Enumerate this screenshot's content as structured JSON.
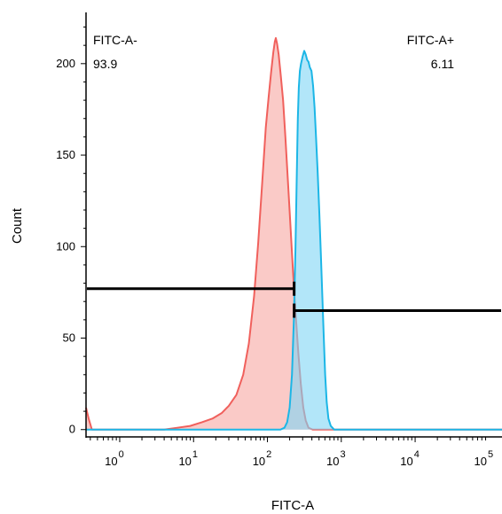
{
  "chart_data": {
    "type": "area",
    "title": "",
    "xlabel": "FITC-A",
    "ylabel": "Count",
    "x_scale": "log",
    "xlim": [
      0.35,
      150000
    ],
    "ylim": [
      -4,
      228
    ],
    "yticks": [
      0,
      50,
      100,
      150,
      200
    ],
    "xticks": [
      {
        "base": "10",
        "exp": "0",
        "value": 1
      },
      {
        "base": "10",
        "exp": "1",
        "value": 10
      },
      {
        "base": "10",
        "exp": "2",
        "value": 100
      },
      {
        "base": "10",
        "exp": "3",
        "value": 1000
      },
      {
        "base": "10",
        "exp": "4",
        "value": 10000
      },
      {
        "base": "10",
        "exp": "5",
        "value": 100000
      }
    ],
    "grid": false,
    "series": [
      {
        "color": "#f0605c",
        "fill": "#f6a6a2",
        "points": [
          [
            0.35,
            12
          ],
          [
            0.38,
            6
          ],
          [
            0.42,
            0
          ],
          [
            4,
            0
          ],
          [
            6,
            1
          ],
          [
            9,
            2
          ],
          [
            13,
            4
          ],
          [
            18,
            6
          ],
          [
            24,
            9
          ],
          [
            30,
            13
          ],
          [
            38,
            19
          ],
          [
            47,
            30
          ],
          [
            56,
            47
          ],
          [
            66,
            73
          ],
          [
            75,
            102
          ],
          [
            85,
            135
          ],
          [
            95,
            165
          ],
          [
            104,
            182
          ],
          [
            112,
            195
          ],
          [
            120,
            206
          ],
          [
            126,
            212
          ],
          [
            130,
            214
          ],
          [
            135,
            211
          ],
          [
            142,
            205
          ],
          [
            152,
            193
          ],
          [
            163,
            180
          ],
          [
            175,
            160
          ],
          [
            190,
            135
          ],
          [
            206,
            110
          ],
          [
            223,
            85
          ],
          [
            242,
            62
          ],
          [
            262,
            42
          ],
          [
            283,
            25
          ],
          [
            306,
            12
          ],
          [
            330,
            5
          ],
          [
            360,
            1
          ],
          [
            410,
            0
          ],
          [
            150000,
            0
          ]
        ]
      },
      {
        "color": "#1cb6e6",
        "fill": "#7ed6f5",
        "points": [
          [
            0.35,
            0
          ],
          [
            150,
            0
          ],
          [
            170,
            1
          ],
          [
            185,
            4
          ],
          [
            200,
            12
          ],
          [
            215,
            30
          ],
          [
            228,
            60
          ],
          [
            240,
            100
          ],
          [
            250,
            140
          ],
          [
            258,
            170
          ],
          [
            266,
            187
          ],
          [
            275,
            196
          ],
          [
            285,
            200
          ],
          [
            300,
            204
          ],
          [
            315,
            207
          ],
          [
            330,
            205
          ],
          [
            345,
            202
          ],
          [
            360,
            201
          ],
          [
            375,
            198
          ],
          [
            395,
            196
          ],
          [
            415,
            188
          ],
          [
            435,
            176
          ],
          [
            455,
            160
          ],
          [
            480,
            140
          ],
          [
            505,
            118
          ],
          [
            530,
            95
          ],
          [
            555,
            72
          ],
          [
            580,
            50
          ],
          [
            605,
            30
          ],
          [
            635,
            15
          ],
          [
            670,
            6
          ],
          [
            720,
            2
          ],
          [
            800,
            0
          ],
          [
            150000,
            0
          ]
        ]
      }
    ],
    "gates": [
      {
        "name": "FITC-A-",
        "value": "93.9",
        "x_start": 0.35,
        "x_end": 230,
        "y": 77,
        "label_position": "top-left"
      },
      {
        "name": "FITC-A+",
        "value": "6.11",
        "x_start": 230,
        "x_end": 150000,
        "y": 65,
        "label_position": "top-right"
      }
    ]
  }
}
